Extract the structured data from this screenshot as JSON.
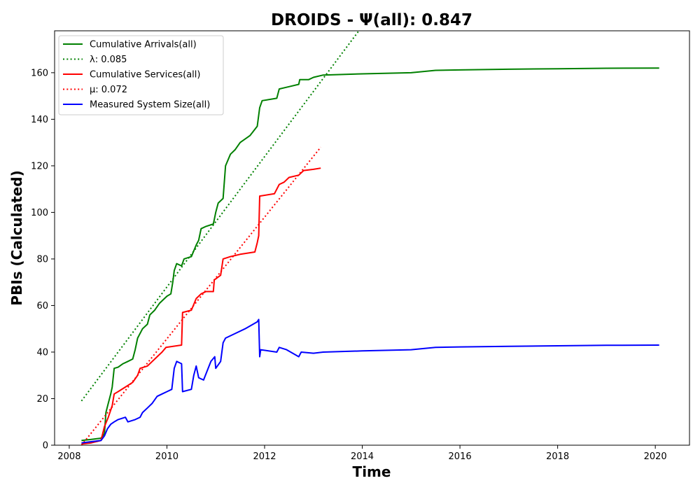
{
  "chart_data": {
    "type": "line",
    "title": "DROIDS -  Ψ(all): 0.847",
    "xlabel": "Time",
    "ylabel": "PBIs (Calculated)",
    "xlim": [
      2007.7,
      2020.7
    ],
    "ylim": [
      0,
      178
    ],
    "x_ticks": [
      2008,
      2010,
      2012,
      2014,
      2016,
      2018,
      2020
    ],
    "y_ticks": [
      0,
      20,
      40,
      60,
      80,
      100,
      120,
      140,
      160
    ],
    "grid": false,
    "legend_position": "top-left",
    "series": [
      {
        "name": "Cumulative Arrivals(all)",
        "color": "#008000",
        "style": "solid",
        "points": [
          [
            2008.25,
            2
          ],
          [
            2008.45,
            2.5
          ],
          [
            2008.65,
            3
          ],
          [
            2008.72,
            5
          ],
          [
            2008.75,
            14
          ],
          [
            2008.8,
            18
          ],
          [
            2008.85,
            22
          ],
          [
            2008.88,
            25
          ],
          [
            2008.92,
            33
          ],
          [
            2009.0,
            33.5
          ],
          [
            2009.1,
            35
          ],
          [
            2009.2,
            36
          ],
          [
            2009.3,
            37
          ],
          [
            2009.35,
            41
          ],
          [
            2009.4,
            46
          ],
          [
            2009.5,
            50
          ],
          [
            2009.6,
            52
          ],
          [
            2009.65,
            56
          ],
          [
            2009.75,
            58
          ],
          [
            2009.85,
            61
          ],
          [
            2010.0,
            64
          ],
          [
            2010.08,
            65
          ],
          [
            2010.12,
            70
          ],
          [
            2010.15,
            75
          ],
          [
            2010.2,
            78
          ],
          [
            2010.3,
            77
          ],
          [
            2010.35,
            80
          ],
          [
            2010.5,
            81
          ],
          [
            2010.6,
            86
          ],
          [
            2010.65,
            88
          ],
          [
            2010.7,
            93
          ],
          [
            2010.8,
            94
          ],
          [
            2010.95,
            95
          ],
          [
            2011.0,
            100
          ],
          [
            2011.05,
            104
          ],
          [
            2011.15,
            106
          ],
          [
            2011.2,
            120
          ],
          [
            2011.3,
            125
          ],
          [
            2011.4,
            127
          ],
          [
            2011.5,
            130
          ],
          [
            2011.7,
            133
          ],
          [
            2011.85,
            137
          ],
          [
            2011.9,
            145
          ],
          [
            2011.95,
            148
          ],
          [
            2012.25,
            149
          ],
          [
            2012.3,
            153
          ],
          [
            2012.5,
            154
          ],
          [
            2012.7,
            155
          ],
          [
            2012.72,
            157
          ],
          [
            2012.9,
            157
          ],
          [
            2013.0,
            158
          ],
          [
            2013.2,
            159
          ],
          [
            2014.0,
            159.5
          ],
          [
            2015.0,
            160
          ],
          [
            2015.5,
            161
          ],
          [
            2016.0,
            161.2
          ],
          [
            2017.0,
            161.5
          ],
          [
            2018.0,
            161.7
          ],
          [
            2019.0,
            161.9
          ],
          [
            2020.08,
            162
          ]
        ]
      },
      {
        "name": "λ: 0.085",
        "color": "#008000",
        "style": "dotted",
        "points": [
          [
            2008.25,
            19
          ],
          [
            2013.93,
            178
          ]
        ]
      },
      {
        "name": "Cumulative Services(all)",
        "color": "#ff0000",
        "style": "solid",
        "points": [
          [
            2008.25,
            0.5
          ],
          [
            2008.45,
            1
          ],
          [
            2008.65,
            2
          ],
          [
            2008.72,
            8
          ],
          [
            2008.8,
            12
          ],
          [
            2008.88,
            17
          ],
          [
            2008.92,
            22
          ],
          [
            2009.0,
            23
          ],
          [
            2009.15,
            25
          ],
          [
            2009.3,
            27
          ],
          [
            2009.4,
            30
          ],
          [
            2009.45,
            33
          ],
          [
            2009.6,
            34
          ],
          [
            2009.7,
            36
          ],
          [
            2009.8,
            38
          ],
          [
            2009.9,
            40
          ],
          [
            2009.98,
            42
          ],
          [
            2010.3,
            43
          ],
          [
            2010.32,
            57
          ],
          [
            2010.5,
            58
          ],
          [
            2010.6,
            63
          ],
          [
            2010.7,
            65
          ],
          [
            2010.8,
            66
          ],
          [
            2010.95,
            66
          ],
          [
            2010.97,
            71
          ],
          [
            2011.1,
            73
          ],
          [
            2011.15,
            80
          ],
          [
            2011.3,
            81
          ],
          [
            2011.5,
            82
          ],
          [
            2011.8,
            83
          ],
          [
            2011.85,
            87
          ],
          [
            2011.88,
            90
          ],
          [
            2011.9,
            107
          ],
          [
            2012.2,
            108
          ],
          [
            2012.3,
            112
          ],
          [
            2012.4,
            113
          ],
          [
            2012.5,
            115
          ],
          [
            2012.7,
            116
          ],
          [
            2012.8,
            118
          ],
          [
            2013.0,
            118.5
          ],
          [
            2013.15,
            119
          ]
        ]
      },
      {
        "name": "μ: 0.072",
        "color": "#ff0000",
        "style": "dotted",
        "points": [
          [
            2008.25,
            0
          ],
          [
            2013.15,
            128
          ]
        ]
      },
      {
        "name": "Measured System Size(all)",
        "color": "#0000ff",
        "style": "solid",
        "points": [
          [
            2008.25,
            1
          ],
          [
            2008.45,
            1.5
          ],
          [
            2008.65,
            2
          ],
          [
            2008.72,
            4
          ],
          [
            2008.78,
            7
          ],
          [
            2008.85,
            9
          ],
          [
            2008.92,
            10
          ],
          [
            2009.0,
            11
          ],
          [
            2009.15,
            12
          ],
          [
            2009.2,
            10
          ],
          [
            2009.35,
            11
          ],
          [
            2009.45,
            12
          ],
          [
            2009.5,
            14
          ],
          [
            2009.6,
            16
          ],
          [
            2009.7,
            18
          ],
          [
            2009.8,
            21
          ],
          [
            2009.9,
            22
          ],
          [
            2010.0,
            23
          ],
          [
            2010.1,
            24
          ],
          [
            2010.15,
            33
          ],
          [
            2010.2,
            36
          ],
          [
            2010.3,
            35
          ],
          [
            2010.32,
            23
          ],
          [
            2010.5,
            24
          ],
          [
            2010.55,
            30
          ],
          [
            2010.6,
            34
          ],
          [
            2010.65,
            29
          ],
          [
            2010.75,
            28
          ],
          [
            2010.9,
            36
          ],
          [
            2010.98,
            38
          ],
          [
            2011.0,
            33
          ],
          [
            2011.1,
            36
          ],
          [
            2011.15,
            44
          ],
          [
            2011.2,
            46
          ],
          [
            2011.4,
            48
          ],
          [
            2011.6,
            50
          ],
          [
            2011.85,
            53
          ],
          [
            2011.88,
            54
          ],
          [
            2011.9,
            38
          ],
          [
            2011.92,
            41
          ],
          [
            2012.25,
            40
          ],
          [
            2012.3,
            42
          ],
          [
            2012.45,
            41
          ],
          [
            2012.7,
            38
          ],
          [
            2012.75,
            40
          ],
          [
            2013.0,
            39.5
          ],
          [
            2013.2,
            40
          ],
          [
            2014.0,
            40.5
          ],
          [
            2015.0,
            41
          ],
          [
            2015.5,
            42
          ],
          [
            2016.0,
            42.2
          ],
          [
            2017.0,
            42.5
          ],
          [
            2018.0,
            42.7
          ],
          [
            2019.0,
            42.9
          ],
          [
            2020.08,
            43
          ]
        ]
      }
    ]
  }
}
